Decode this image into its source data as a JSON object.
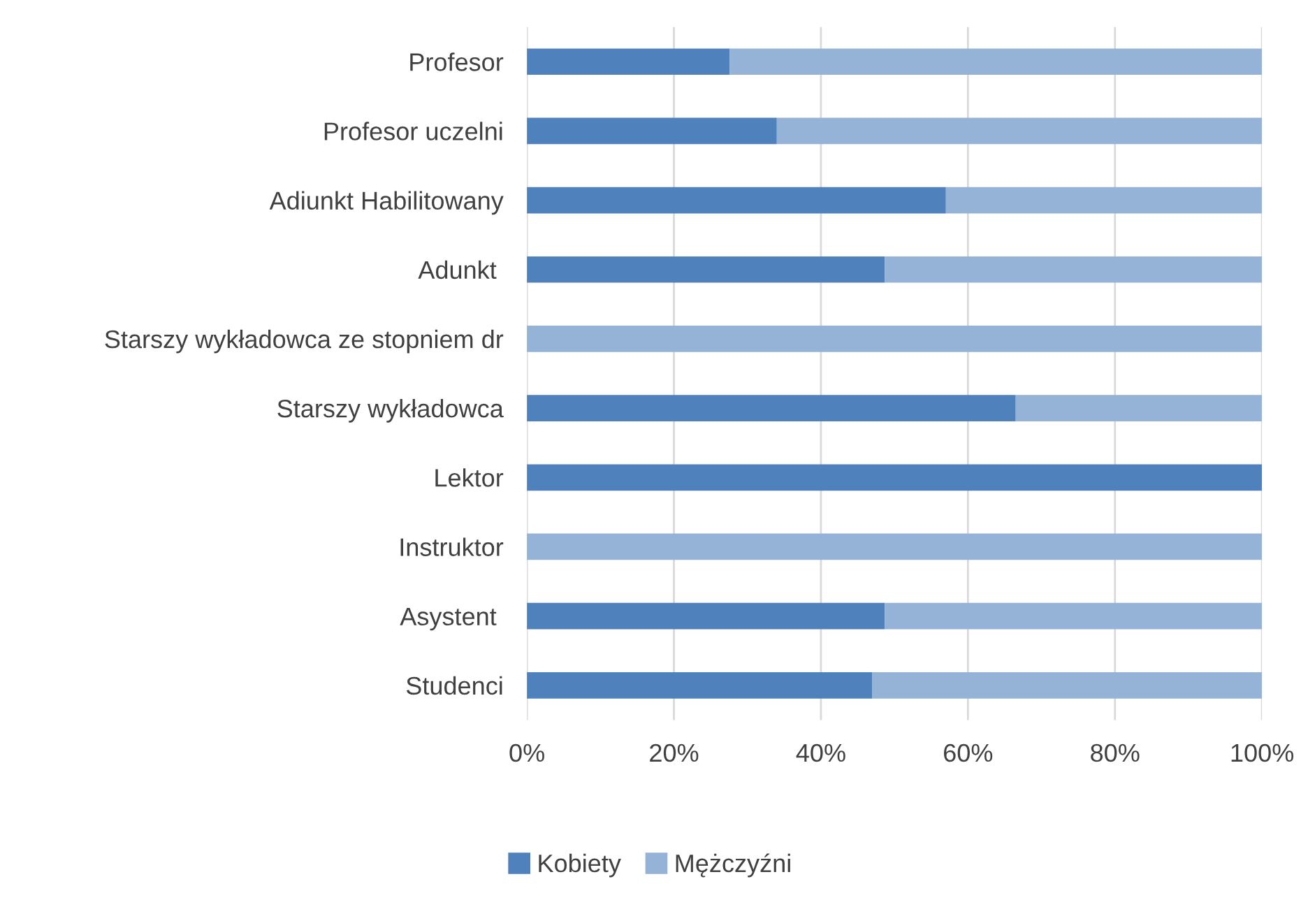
{
  "chart_data": {
    "type": "bar",
    "orientation": "horizontal",
    "stacked": true,
    "categories": [
      "Profesor",
      "Profesor uczelni",
      "Adiunkt Habilitowany",
      "Adunkt ",
      "Starszy wykładowca ze stopniem dr",
      "Starszy wykładowca",
      "Lektor",
      "Instruktor",
      "Asystent ",
      "Studenci"
    ],
    "series": [
      {
        "name": "Kobiety",
        "color": "#4f81bd",
        "values": [
          27.6,
          34.0,
          57.0,
          48.7,
          0,
          66.5,
          100,
          0,
          48.7,
          47.0
        ]
      },
      {
        "name": "Mężczyźni",
        "color": "#95b3d7",
        "values": [
          72.4,
          66.0,
          43.0,
          51.3,
          100,
          33.5,
          0,
          100,
          51.3,
          53.0
        ]
      }
    ],
    "xlim": [
      0,
      100
    ],
    "xticks": [
      {
        "value": 0,
        "label": "0%"
      },
      {
        "value": 20,
        "label": "20%"
      },
      {
        "value": 40,
        "label": "40%"
      },
      {
        "value": 60,
        "label": "60%"
      },
      {
        "value": 80,
        "label": "80%"
      },
      {
        "value": 100,
        "label": "100%"
      }
    ],
    "grid": "x",
    "legend": "bottom"
  }
}
